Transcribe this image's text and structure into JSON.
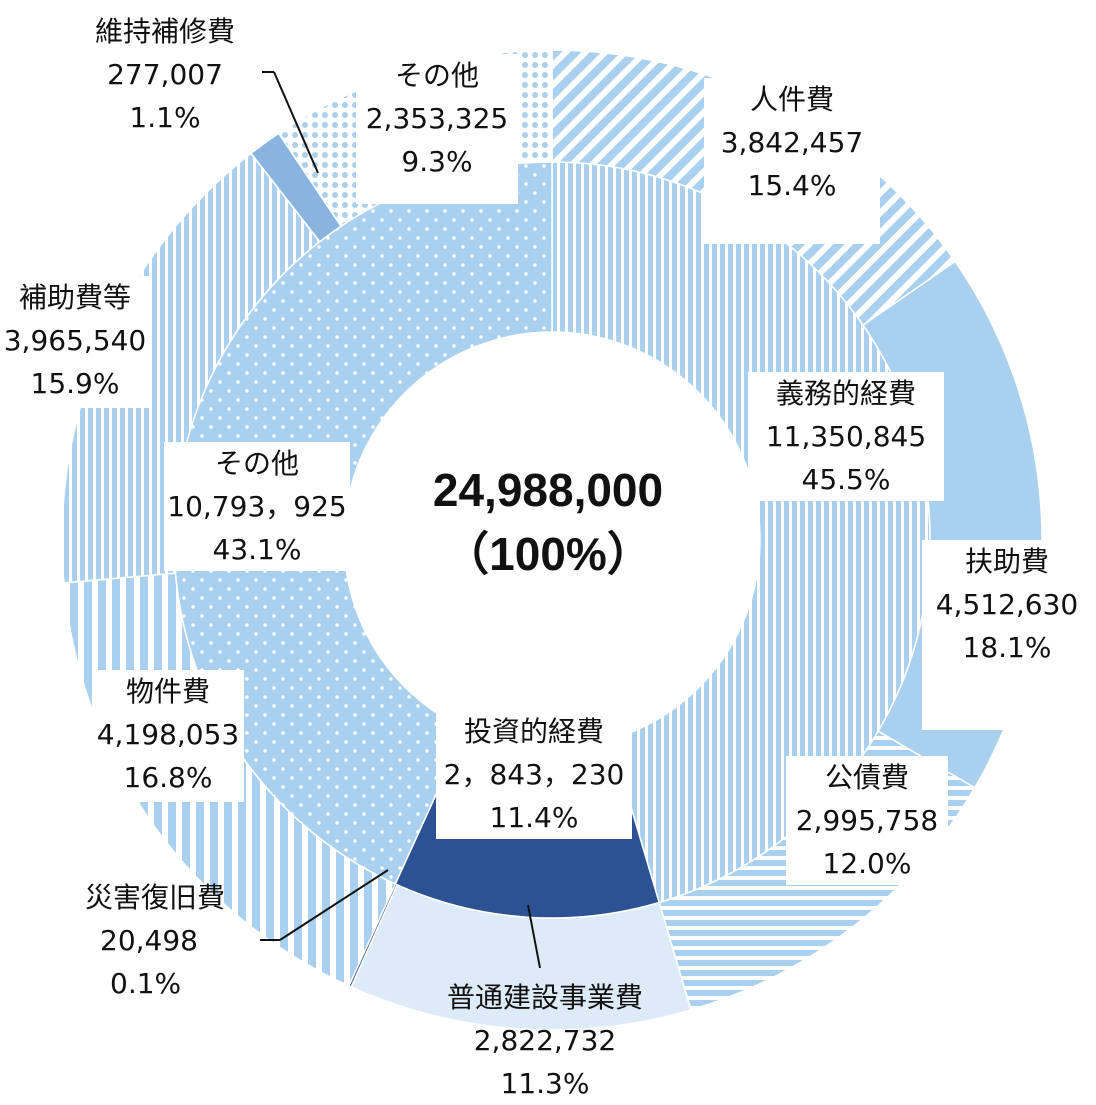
{
  "chart_data": {
    "type": "pie",
    "donut": true,
    "total": {
      "value": "24,988,000",
      "percent": "（100%）"
    },
    "inner_ring": [
      {
        "name": "義務的経費",
        "value": 11350845,
        "value_text": "11,350,845",
        "percent": "45.5%",
        "color": "#a9d1ef",
        "pattern": "vlines"
      },
      {
        "name": "投資的経費",
        "value": 2843230,
        "value_text": "2，843，230",
        "percent": "11.4%",
        "color": "#2c5293",
        "pattern": "solid"
      },
      {
        "name": "その他",
        "value": 10793925,
        "value_text": "10,793，925",
        "percent": "43.1%",
        "color": "#a9d1ef",
        "pattern": "dots"
      }
    ],
    "outer_ring": [
      {
        "name": "人件費",
        "value": 3842457,
        "value_text": "3,842,457",
        "percent": "15.4%",
        "color": "#a9d1ef",
        "pattern": "diag"
      },
      {
        "name": "扶助費",
        "value": 4512630,
        "value_text": "4,512,630",
        "percent": "18.1%",
        "color": "#a9d1ef",
        "pattern": "solid"
      },
      {
        "name": "公債費",
        "value": 2995758,
        "value_text": "2,995,758",
        "percent": "12.0%",
        "color": "#a9d1ef",
        "pattern": "hlines"
      },
      {
        "name": "普通建設事業費",
        "value": 2822732,
        "value_text": "2,822,732",
        "percent": "11.3%",
        "color": "#ddebf8",
        "pattern": "solid"
      },
      {
        "name": "災害復旧費",
        "value": 20498,
        "value_text": "20,498",
        "percent": "0.1%",
        "color": "#2c5293",
        "pattern": "solid"
      },
      {
        "name": "物件費",
        "value": 4198053,
        "value_text": "4,198,053",
        "percent": "16.8%",
        "color": "#a9d1ef",
        "pattern": "wvlines"
      },
      {
        "name": "補助費等",
        "value": 3965540,
        "value_text": "3,965,540",
        "percent": "15.9%",
        "color": "#a9d1ef",
        "pattern": "vlines"
      },
      {
        "name": "維持補修費",
        "value": 277007,
        "value_text": "277,007",
        "percent": "1.1%",
        "color": "#89b4e0",
        "pattern": "solid"
      },
      {
        "name": "その他",
        "value": 2353325,
        "value_text": "2,353,325",
        "percent": "9.3%",
        "color": "#a9d1ef",
        "pattern": "cross"
      }
    ]
  }
}
